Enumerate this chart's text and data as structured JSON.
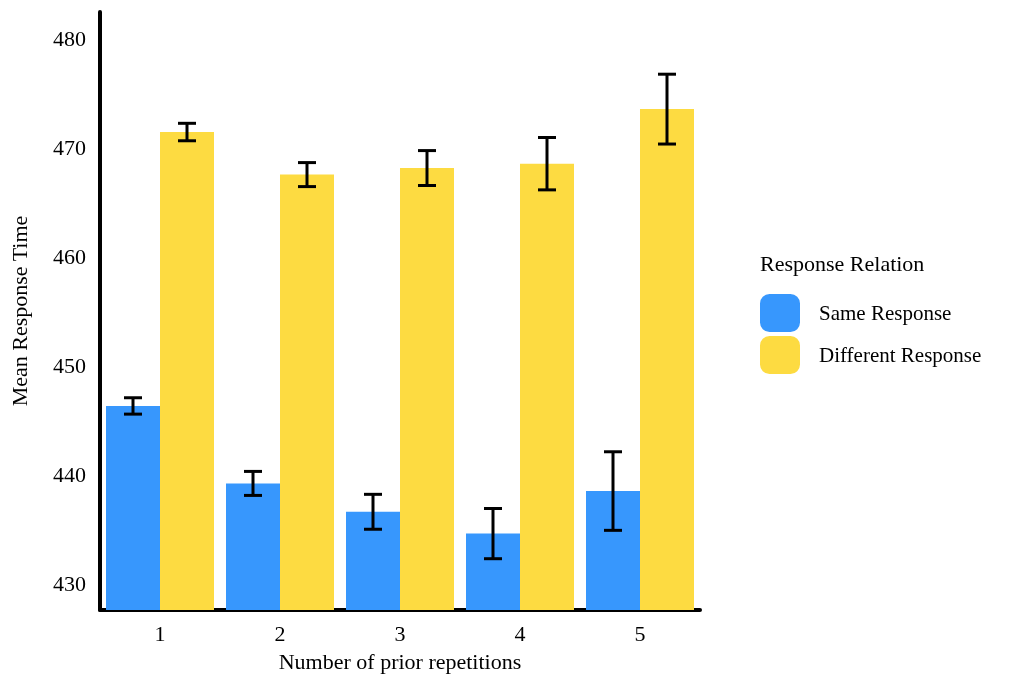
{
  "chart_data": {
    "type": "bar",
    "xlabel": "Number of prior repetitions",
    "ylabel": "Mean Response Time",
    "legend_title": "Response Relation",
    "categories": [
      "1",
      "2",
      "3",
      "4",
      "5"
    ],
    "series": [
      {
        "name": "Same Response",
        "color": "#3797fd",
        "values": [
          446.3,
          439.2,
          436.6,
          434.6,
          438.5
        ],
        "errors": [
          0.75,
          1.1,
          1.6,
          2.3,
          3.6
        ]
      },
      {
        "name": "Different Response",
        "color": "#fddb41",
        "values": [
          471.4,
          467.5,
          468.1,
          468.5,
          473.5
        ],
        "errors": [
          0.8,
          1.1,
          1.6,
          2.4,
          3.2
        ]
      }
    ],
    "ylim": [
      427.6,
      482.4
    ],
    "yticks": [
      430,
      440,
      450,
      460,
      470,
      480
    ],
    "grid": false,
    "legend": "right"
  }
}
